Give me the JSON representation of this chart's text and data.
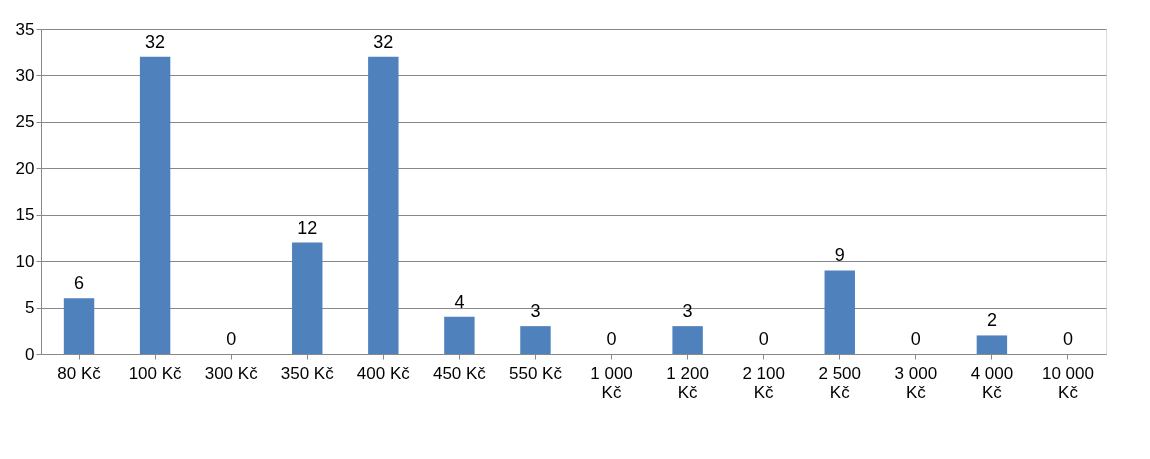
{
  "chart_data": {
    "type": "bar",
    "categories": [
      "80 Kč",
      "100 Kč",
      "300 Kč",
      "350 Kč",
      "400 Kč",
      "450 Kč",
      "550 Kč",
      "1 000 Kč",
      "1 200 Kč",
      "2 100 Kč",
      "2 500 Kč",
      "3 000 Kč",
      "4 000 Kč",
      "10 000 Kč"
    ],
    "values": [
      6,
      32,
      0,
      12,
      32,
      4,
      3,
      0,
      3,
      0,
      9,
      0,
      2,
      0
    ],
    "color": "#4f81bd",
    "ylim": [
      0,
      35
    ],
    "yticks": [
      0,
      5,
      10,
      15,
      20,
      25,
      30,
      35
    ],
    "grid": "y",
    "data_labels": true
  }
}
